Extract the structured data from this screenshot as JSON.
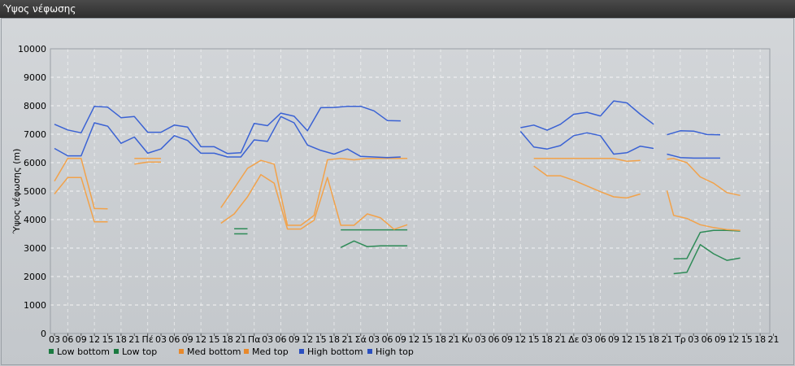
{
  "window": {
    "title": "Ύψος νέφωσης"
  },
  "chart_data": {
    "type": "line",
    "title": "Ύψος νέφωσης",
    "ylabel": "Ύψος νέφωσης (m)",
    "xlabel": "",
    "ylim": [
      0,
      10000
    ],
    "yticks": [
      0,
      1000,
      2000,
      3000,
      4000,
      5000,
      6000,
      7000,
      8000,
      9000,
      10000
    ],
    "grid": true,
    "legend": "bottom-left",
    "x_ticks": [
      "03",
      "06",
      "09",
      "12",
      "15",
      "18",
      "21",
      "Πέ",
      "03",
      "06",
      "09",
      "12",
      "15",
      "18",
      "21",
      "Πα",
      "03",
      "06",
      "09",
      "12",
      "15",
      "18",
      "21",
      "Σά",
      "03",
      "06",
      "09",
      "12",
      "15",
      "18",
      "21",
      "Κυ",
      "03",
      "06",
      "09",
      "12",
      "15",
      "18",
      "21",
      "Δε",
      "03",
      "06",
      "09",
      "12",
      "15",
      "18",
      "21",
      "Τρ",
      "03",
      "06",
      "09",
      "12",
      "15",
      "18",
      "21"
    ],
    "series": [
      {
        "name": "Low bottom",
        "color": "#2e8b57",
        "marker": "#1a7a40",
        "segments": [
          [
            [
              13.5,
              3500
            ],
            [
              14.5,
              3500
            ]
          ],
          [
            [
              21.5,
              3020
            ],
            [
              22.5,
              3250
            ],
            [
              23.5,
              3050
            ],
            [
              24.5,
              3080
            ],
            [
              25.5,
              3080
            ],
            [
              26.5,
              3080
            ]
          ],
          [
            [
              46.5,
              2100
            ],
            [
              47.5,
              2150
            ],
            [
              48.5,
              3120
            ],
            [
              49.5,
              2800
            ],
            [
              50.5,
              2570
            ],
            [
              51.5,
              2650
            ]
          ]
        ]
      },
      {
        "name": "Low top",
        "color": "#2e8b57",
        "marker": "#1a7a40",
        "segments": [
          [
            [
              13.5,
              3680
            ],
            [
              14.5,
              3680
            ]
          ],
          [
            [
              21.5,
              3640
            ],
            [
              22.5,
              3640
            ],
            [
              23.5,
              3640
            ],
            [
              24.5,
              3640
            ],
            [
              25.5,
              3640
            ],
            [
              26.5,
              3640
            ]
          ],
          [
            [
              46.5,
              2620
            ],
            [
              47.5,
              2630
            ],
            [
              48.5,
              3550
            ],
            [
              49.5,
              3620
            ],
            [
              50.5,
              3620
            ],
            [
              51.5,
              3600
            ]
          ]
        ]
      },
      {
        "name": "Med bottom",
        "color": "#f2a24a",
        "marker": "#e8892b",
        "segments": [
          [
            [
              0,
              4900
            ],
            [
              1,
              5480
            ],
            [
              2,
              5480
            ],
            [
              3,
              3920
            ],
            [
              4,
              3920
            ]
          ],
          [
            [
              6,
              5950
            ],
            [
              7,
              6020
            ],
            [
              8,
              6020
            ]
          ],
          [
            [
              12.5,
              3870
            ],
            [
              13.5,
              4200
            ],
            [
              14.5,
              4800
            ],
            [
              15.5,
              5580
            ],
            [
              16.5,
              5280
            ],
            [
              17.5,
              3670
            ],
            [
              18.5,
              3670
            ],
            [
              19.5,
              3980
            ],
            [
              20.5,
              5480
            ],
            [
              21.5,
              3800
            ],
            [
              22.5,
              3800
            ],
            [
              23.5,
              4200
            ],
            [
              24.5,
              4060
            ],
            [
              25.5,
              3660
            ],
            [
              26.5,
              3820
            ]
          ],
          [
            [
              36,
              5880
            ],
            [
              37,
              5540
            ],
            [
              38,
              5540
            ],
            [
              39,
              5380
            ],
            [
              40,
              5180
            ],
            [
              41,
              4980
            ],
            [
              42,
              4800
            ],
            [
              43,
              4760
            ],
            [
              44,
              4900
            ]
          ],
          [
            [
              46,
              5020
            ],
            [
              46.5,
              4150
            ],
            [
              47.5,
              4040
            ],
            [
              48.5,
              3820
            ],
            [
              49.5,
              3720
            ],
            [
              50.5,
              3650
            ],
            [
              51.5,
              3620
            ]
          ]
        ]
      },
      {
        "name": "Med top",
        "color": "#f2a24a",
        "marker": "#e8892b",
        "segments": [
          [
            [
              0,
              5350
            ],
            [
              1,
              6150
            ],
            [
              2,
              6150
            ],
            [
              3,
              4390
            ],
            [
              4,
              4380
            ]
          ],
          [
            [
              6,
              6150
            ],
            [
              7,
              6150
            ],
            [
              8,
              6150
            ]
          ],
          [
            [
              12.5,
              4420
            ],
            [
              13.5,
              5100
            ],
            [
              14.5,
              5800
            ],
            [
              15.5,
              6080
            ],
            [
              16.5,
              5950
            ],
            [
              17.5,
              3800
            ],
            [
              18.5,
              3800
            ],
            [
              19.5,
              4150
            ],
            [
              20.5,
              6100
            ],
            [
              21.5,
              6150
            ],
            [
              22.5,
              6100
            ],
            [
              23.5,
              6150
            ],
            [
              24.5,
              6150
            ],
            [
              25.5,
              6150
            ],
            [
              26.5,
              6150
            ]
          ],
          [
            [
              36,
              6150
            ],
            [
              37,
              6150
            ],
            [
              38,
              6150
            ],
            [
              39,
              6150
            ],
            [
              40,
              6150
            ],
            [
              41,
              6150
            ],
            [
              42,
              6150
            ],
            [
              43,
              6050
            ],
            [
              44,
              6080
            ]
          ],
          [
            [
              46,
              6120
            ],
            [
              46.5,
              6150
            ],
            [
              47.5,
              6000
            ],
            [
              48.5,
              5500
            ],
            [
              49.5,
              5280
            ],
            [
              50.5,
              4950
            ],
            [
              51.5,
              4850
            ]
          ]
        ]
      },
      {
        "name": "High bottom",
        "color": "#3a62d4",
        "marker": "#2a4fc0",
        "segments": [
          [
            [
              0,
              6500
            ],
            [
              1,
              6240
            ],
            [
              2,
              6240
            ],
            [
              3,
              7400
            ],
            [
              4,
              7280
            ],
            [
              5,
              6680
            ],
            [
              6,
              6900
            ],
            [
              7,
              6330
            ],
            [
              8,
              6480
            ],
            [
              9,
              6950
            ],
            [
              10,
              6780
            ],
            [
              11,
              6330
            ],
            [
              12,
              6330
            ],
            [
              13,
              6200
            ],
            [
              14,
              6200
            ],
            [
              15,
              6800
            ],
            [
              16,
              6750
            ],
            [
              17,
              7620
            ],
            [
              18,
              7400
            ],
            [
              19,
              6620
            ],
            [
              20,
              6430
            ],
            [
              21,
              6300
            ],
            [
              22,
              6480
            ],
            [
              23,
              6220
            ],
            [
              24,
              6200
            ],
            [
              25,
              6180
            ],
            [
              26,
              6200
            ]
          ],
          [
            [
              35,
              7100
            ],
            [
              36,
              6550
            ],
            [
              37,
              6480
            ],
            [
              38,
              6600
            ],
            [
              39,
              6950
            ],
            [
              40,
              7050
            ],
            [
              41,
              6950
            ],
            [
              42,
              6300
            ],
            [
              43,
              6350
            ],
            [
              44,
              6580
            ],
            [
              45,
              6500
            ]
          ],
          [
            [
              46,
              6300
            ],
            [
              47,
              6180
            ],
            [
              48,
              6160
            ],
            [
              49,
              6160
            ],
            [
              50,
              6160
            ]
          ]
        ]
      },
      {
        "name": "High top",
        "color": "#3a62d4",
        "marker": "#2a4fc0",
        "segments": [
          [
            [
              0,
              7350
            ],
            [
              1,
              7150
            ],
            [
              2,
              7050
            ],
            [
              3,
              7980
            ],
            [
              4,
              7950
            ],
            [
              5,
              7580
            ],
            [
              6,
              7620
            ],
            [
              7,
              7070
            ],
            [
              8,
              7070
            ],
            [
              9,
              7320
            ],
            [
              10,
              7250
            ],
            [
              11,
              6560
            ],
            [
              12,
              6560
            ],
            [
              13,
              6320
            ],
            [
              14,
              6350
            ],
            [
              15,
              7380
            ],
            [
              16,
              7300
            ],
            [
              17,
              7740
            ],
            [
              18,
              7630
            ],
            [
              19,
              7120
            ],
            [
              20,
              7930
            ],
            [
              21,
              7940
            ],
            [
              22,
              7980
            ],
            [
              23,
              7980
            ],
            [
              24,
              7820
            ],
            [
              25,
              7480
            ],
            [
              26,
              7470
            ]
          ],
          [
            [
              35,
              7230
            ],
            [
              36,
              7320
            ],
            [
              37,
              7140
            ],
            [
              38,
              7350
            ],
            [
              39,
              7700
            ],
            [
              40,
              7770
            ],
            [
              41,
              7640
            ],
            [
              42,
              8170
            ],
            [
              43,
              8100
            ],
            [
              44,
              7700
            ],
            [
              45,
              7350
            ]
          ],
          [
            [
              46,
              6980
            ],
            [
              47,
              7120
            ],
            [
              48,
              7110
            ],
            [
              49,
              6990
            ],
            [
              50,
              6980
            ]
          ]
        ]
      }
    ]
  }
}
